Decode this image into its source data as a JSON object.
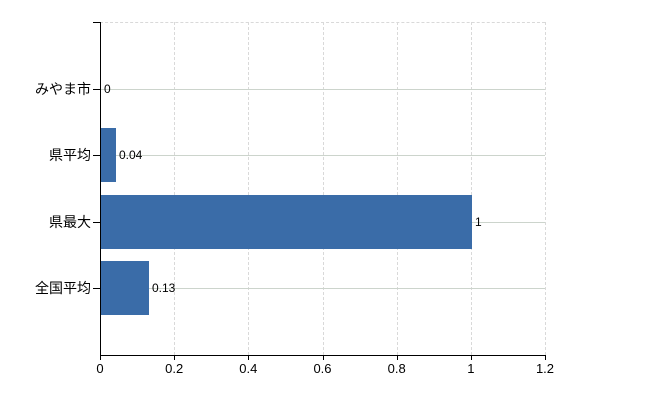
{
  "chart_data": {
    "type": "bar",
    "orientation": "horizontal",
    "title": "",
    "xlabel": "",
    "ylabel": "",
    "categories": [
      "みやま市",
      "県平均",
      "県最大",
      "全国平均"
    ],
    "values": [
      0,
      0.04,
      1,
      0.13
    ],
    "value_labels": [
      "0",
      "0.04",
      "1",
      "0.13"
    ],
    "xlim": [
      0,
      1.2
    ],
    "x_ticks": [
      0,
      0.2,
      0.4,
      0.6,
      0.8,
      1,
      1.2
    ],
    "x_tick_labels": [
      "0",
      "0.2",
      "0.4",
      "0.6",
      "0.8",
      "1",
      "1.2"
    ],
    "grid": true,
    "legend": false,
    "legend_position": "none",
    "colors": {
      "bar": "#3A6CA8",
      "axis": "#000000",
      "grid_horizontal": "#ccd4cc",
      "grid_vertical": "#d9d9d9",
      "text": "#000000",
      "background": "#ffffff"
    }
  }
}
